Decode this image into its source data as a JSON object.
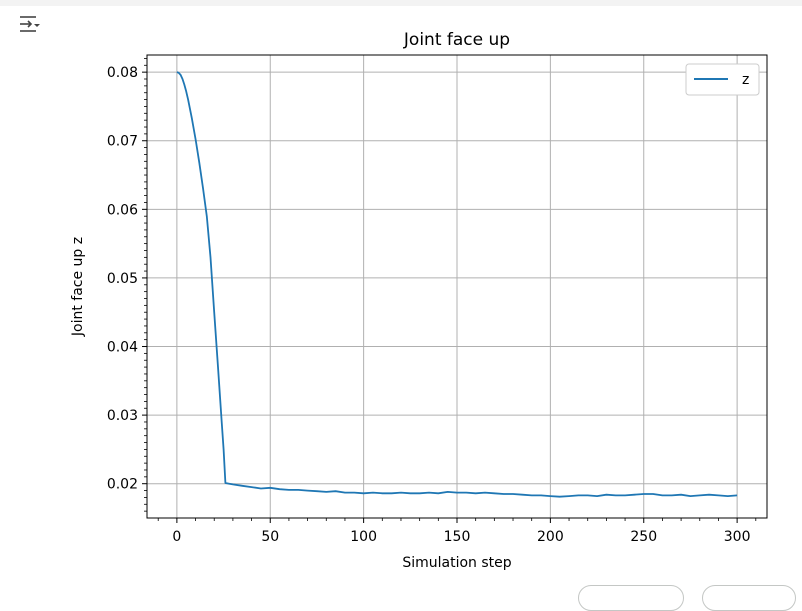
{
  "output": {
    "toggle_icon": "output-collapse-icon"
  },
  "chart_data": {
    "type": "line",
    "title": "Joint face up",
    "xlabel": "Simulation step",
    "ylabel": "Joint face up z",
    "xlim": [
      -16,
      316
    ],
    "ylim": [
      0.015,
      0.0825
    ],
    "xticks": [
      0,
      50,
      100,
      150,
      200,
      250,
      300
    ],
    "yticks": [
      0.02,
      0.03,
      0.04,
      0.05,
      0.06,
      0.07,
      0.08
    ],
    "ytick_labels": [
      "0.02",
      "0.03",
      "0.04",
      "0.05",
      "0.06",
      "0.07",
      "0.08"
    ],
    "grid": true,
    "legend_position": "top-right",
    "series": [
      {
        "name": "z",
        "color": "#1f77b4",
        "x": [
          0,
          1,
          2,
          3,
          4,
          5,
          6,
          8,
          10,
          12,
          14,
          16,
          18,
          20,
          22,
          24,
          25,
          26,
          28,
          30,
          35,
          40,
          45,
          50,
          55,
          60,
          65,
          70,
          75,
          80,
          85,
          90,
          95,
          100,
          105,
          110,
          115,
          120,
          125,
          130,
          135,
          140,
          145,
          150,
          155,
          160,
          165,
          170,
          175,
          180,
          185,
          190,
          195,
          200,
          205,
          210,
          215,
          220,
          225,
          230,
          235,
          240,
          245,
          250,
          255,
          260,
          265,
          270,
          275,
          280,
          285,
          290,
          295,
          300
        ],
        "y": [
          0.08,
          0.0799,
          0.0796,
          0.079,
          0.0782,
          0.0772,
          0.076,
          0.0733,
          0.0702,
          0.0668,
          0.0631,
          0.059,
          0.053,
          0.045,
          0.037,
          0.029,
          0.025,
          0.0201,
          0.02,
          0.0199,
          0.0197,
          0.0195,
          0.0193,
          0.0194,
          0.0192,
          0.0191,
          0.0191,
          0.019,
          0.0189,
          0.0188,
          0.0189,
          0.0187,
          0.0187,
          0.0186,
          0.0187,
          0.0186,
          0.0186,
          0.0187,
          0.0186,
          0.0186,
          0.0187,
          0.0186,
          0.0188,
          0.0187,
          0.0187,
          0.0186,
          0.0187,
          0.0186,
          0.0185,
          0.0185,
          0.0184,
          0.0183,
          0.0183,
          0.0182,
          0.0181,
          0.0182,
          0.0183,
          0.0183,
          0.0182,
          0.0184,
          0.0183,
          0.0183,
          0.0184,
          0.0185,
          0.0185,
          0.0183,
          0.0183,
          0.0184,
          0.0182,
          0.0183,
          0.0184,
          0.0183,
          0.0182,
          0.0183
        ]
      }
    ]
  }
}
